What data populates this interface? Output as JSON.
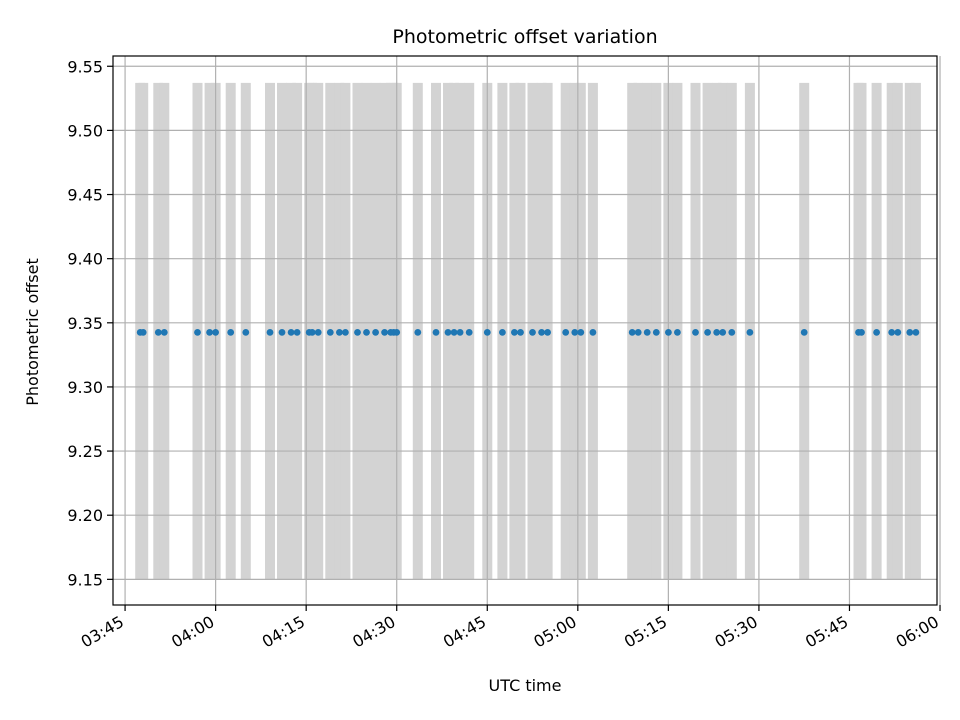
{
  "chart_data": {
    "type": "scatter",
    "title": "Photometric offset variation",
    "xlabel": "UTC time",
    "ylabel": "Photometric offset",
    "xlim": [
      "03:43:00",
      "05:59:30"
    ],
    "ylim": [
      9.13,
      9.558
    ],
    "grid": true,
    "x_ticks": [
      "03:45",
      "04:00",
      "04:15",
      "04:30",
      "04:45",
      "05:00",
      "05:15",
      "05:30",
      "05:45",
      "06:00"
    ],
    "y_ticks": [
      "9.15",
      "9.20",
      "9.25",
      "9.30",
      "9.35",
      "9.40",
      "9.45",
      "9.50",
      "9.55"
    ],
    "band": {
      "ymin": 9.15,
      "ymax": 9.537,
      "color": "#d3d3d3"
    },
    "band_times": [
      "03:47:30",
      "03:48:00",
      "03:50:30",
      "03:51:30",
      "03:57:00",
      "03:59:00",
      "04:00:00",
      "04:02:30",
      "04:05:00",
      "04:09:00",
      "04:11:00",
      "04:12:30",
      "04:13:30",
      "04:15:30",
      "04:16:00",
      "04:17:00",
      "04:19:00",
      "04:20:30",
      "04:21:30",
      "04:23:30",
      "04:25:00",
      "04:26:30",
      "04:28:00",
      "04:29:00",
      "04:29:30",
      "04:30:00",
      "04:33:30",
      "04:36:30",
      "04:38:30",
      "04:39:30",
      "04:40:30",
      "04:42:00",
      "04:45:00",
      "04:47:30",
      "04:49:30",
      "04:50:30",
      "04:52:30",
      "04:54:00",
      "04:55:00",
      "04:58:00",
      "04:59:30",
      "05:00:30",
      "05:02:30",
      "05:09:00",
      "05:10:00",
      "05:11:30",
      "05:13:00",
      "05:15:00",
      "05:16:30",
      "05:19:30",
      "05:21:30",
      "05:23:00",
      "05:24:00",
      "05:25:30",
      "05:28:30",
      "05:37:30",
      "05:46:30",
      "05:47:00",
      "05:49:30",
      "05:52:00",
      "05:53:00",
      "05:55:00",
      "05:56:00"
    ],
    "series": [
      {
        "color": "#1f77b4",
        "points": [
          {
            "x": "03:47:30",
            "y": 9.3425
          },
          {
            "x": "03:48:00",
            "y": 9.3425
          },
          {
            "x": "03:50:30",
            "y": 9.3425
          },
          {
            "x": "03:51:30",
            "y": 9.3425
          },
          {
            "x": "03:57:00",
            "y": 9.3425
          },
          {
            "x": "03:59:00",
            "y": 9.3425
          },
          {
            "x": "04:00:00",
            "y": 9.3425
          },
          {
            "x": "04:02:30",
            "y": 9.3425
          },
          {
            "x": "04:05:00",
            "y": 9.3425
          },
          {
            "x": "04:09:00",
            "y": 9.3425
          },
          {
            "x": "04:11:00",
            "y": 9.3425
          },
          {
            "x": "04:12:30",
            "y": 9.3425
          },
          {
            "x": "04:13:30",
            "y": 9.3425
          },
          {
            "x": "04:15:30",
            "y": 9.3425
          },
          {
            "x": "04:16:00",
            "y": 9.3425
          },
          {
            "x": "04:17:00",
            "y": 9.3425
          },
          {
            "x": "04:19:00",
            "y": 9.3425
          },
          {
            "x": "04:20:30",
            "y": 9.3425
          },
          {
            "x": "04:21:30",
            "y": 9.3425
          },
          {
            "x": "04:23:30",
            "y": 9.3425
          },
          {
            "x": "04:25:00",
            "y": 9.3425
          },
          {
            "x": "04:26:30",
            "y": 9.3425
          },
          {
            "x": "04:28:00",
            "y": 9.3425
          },
          {
            "x": "04:29:00",
            "y": 9.3425
          },
          {
            "x": "04:29:30",
            "y": 9.3425
          },
          {
            "x": "04:30:00",
            "y": 9.3425
          },
          {
            "x": "04:33:30",
            "y": 9.3425
          },
          {
            "x": "04:36:30",
            "y": 9.3425
          },
          {
            "x": "04:38:30",
            "y": 9.3425
          },
          {
            "x": "04:39:30",
            "y": 9.3425
          },
          {
            "x": "04:40:30",
            "y": 9.3425
          },
          {
            "x": "04:42:00",
            "y": 9.3425
          },
          {
            "x": "04:45:00",
            "y": 9.3425
          },
          {
            "x": "04:47:30",
            "y": 9.3425
          },
          {
            "x": "04:49:30",
            "y": 9.3425
          },
          {
            "x": "04:50:30",
            "y": 9.3425
          },
          {
            "x": "04:52:30",
            "y": 9.3425
          },
          {
            "x": "04:54:00",
            "y": 9.3425
          },
          {
            "x": "04:55:00",
            "y": 9.3425
          },
          {
            "x": "04:58:00",
            "y": 9.3425
          },
          {
            "x": "04:59:30",
            "y": 9.3425
          },
          {
            "x": "05:00:30",
            "y": 9.3425
          },
          {
            "x": "05:02:30",
            "y": 9.3425
          },
          {
            "x": "05:09:00",
            "y": 9.3425
          },
          {
            "x": "05:10:00",
            "y": 9.3425
          },
          {
            "x": "05:11:30",
            "y": 9.3425
          },
          {
            "x": "05:13:00",
            "y": 9.3425
          },
          {
            "x": "05:15:00",
            "y": 9.3425
          },
          {
            "x": "05:16:30",
            "y": 9.3425
          },
          {
            "x": "05:19:30",
            "y": 9.3425
          },
          {
            "x": "05:21:30",
            "y": 9.3425
          },
          {
            "x": "05:23:00",
            "y": 9.3425
          },
          {
            "x": "05:24:00",
            "y": 9.3425
          },
          {
            "x": "05:25:30",
            "y": 9.3425
          },
          {
            "x": "05:28:30",
            "y": 9.3425
          },
          {
            "x": "05:37:30",
            "y": 9.3425
          },
          {
            "x": "05:46:30",
            "y": 9.3425
          },
          {
            "x": "05:47:00",
            "y": 9.3425
          },
          {
            "x": "05:49:30",
            "y": 9.3425
          },
          {
            "x": "05:52:00",
            "y": 9.3425
          },
          {
            "x": "05:53:00",
            "y": 9.3425
          },
          {
            "x": "05:55:00",
            "y": 9.3425
          },
          {
            "x": "05:56:00",
            "y": 9.3425
          }
        ]
      }
    ]
  }
}
